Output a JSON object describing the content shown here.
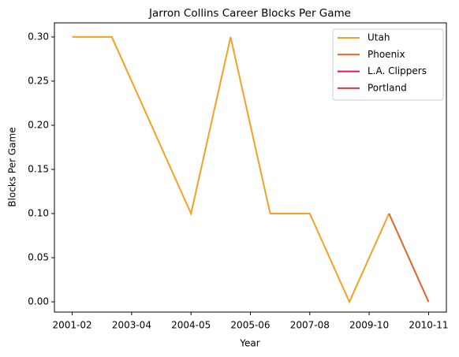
{
  "chart_data": {
    "type": "line",
    "title": "Jarron Collins Career Blocks Per Game",
    "xlabel": "Year",
    "ylabel": "Blocks Per Game",
    "x": [
      0,
      1,
      2,
      3,
      4,
      5,
      6,
      7,
      8,
      9
    ],
    "series": [
      {
        "name": "Utah",
        "color": "#f5a023",
        "values": [
          0.3,
          0.3,
          0.2,
          0.1,
          0.3,
          0.1,
          0.1,
          0.0,
          0.1,
          null
        ]
      },
      {
        "name": "Phoenix",
        "color": "#e0622a",
        "values": [
          null,
          null,
          null,
          null,
          null,
          null,
          null,
          null,
          0.1,
          0.0
        ]
      },
      {
        "name": "L.A. Clippers",
        "color": "#e8174a",
        "values": [
          null,
          null,
          null,
          null,
          null,
          null,
          null,
          null,
          null,
          null
        ]
      },
      {
        "name": "Portland",
        "color": "#d8393f",
        "values": [
          null,
          null,
          null,
          null,
          null,
          null,
          null,
          null,
          null,
          null
        ]
      }
    ],
    "xlim": [
      -0.45,
      9.45
    ],
    "xticks": [
      {
        "value": 0,
        "label": "2001-02"
      },
      {
        "value": 1.5,
        "label": "2003-04"
      },
      {
        "value": 3,
        "label": "2004-05"
      },
      {
        "value": 4.5,
        "label": "2005-06"
      },
      {
        "value": 6,
        "label": "2007-08"
      },
      {
        "value": 7.5,
        "label": "2009-10"
      },
      {
        "value": 9,
        "label": "2010-11"
      }
    ],
    "ylim": [
      -0.0116,
      0.316
    ],
    "yticks": [
      {
        "value": 0,
        "label": "0.00"
      },
      {
        "value": 0.05,
        "label": "0.05"
      },
      {
        "value": 0.1,
        "label": "0.10"
      },
      {
        "value": 0.15,
        "label": "0.15"
      },
      {
        "value": 0.2,
        "label": "0.20"
      },
      {
        "value": 0.25,
        "label": "0.25"
      },
      {
        "value": 0.3,
        "label": "0.30"
      }
    ],
    "legend": "upper right"
  }
}
